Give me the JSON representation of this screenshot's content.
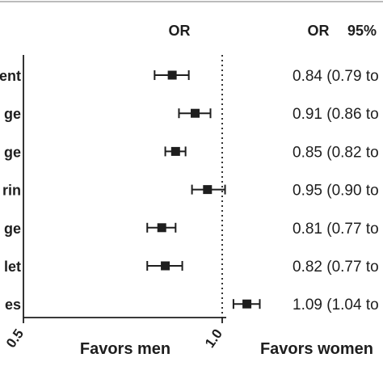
{
  "chart_data": {
    "type": "forest",
    "title": "",
    "header": {
      "or_plot": "OR",
      "or_table": "OR",
      "ci_table": "95%"
    },
    "rows": [
      {
        "label": "ent",
        "or": 0.84,
        "ci_low": 0.79,
        "ci_high": 0.89,
        "text": "0.84 (0.79 to"
      },
      {
        "label": "ge",
        "or": 0.91,
        "ci_low": 0.86,
        "ci_high": 0.96,
        "text": "0.91 (0.86 to"
      },
      {
        "label": "ge",
        "or": 0.85,
        "ci_low": 0.82,
        "ci_high": 0.88,
        "text": "0.85 (0.82 to"
      },
      {
        "label": "rin",
        "or": 0.95,
        "ci_low": 0.9,
        "ci_high": 1.01,
        "text": "0.95 (0.90 to"
      },
      {
        "label": "ge",
        "or": 0.81,
        "ci_low": 0.77,
        "ci_high": 0.85,
        "text": "0.81 (0.77 to"
      },
      {
        "label": "let",
        "or": 0.82,
        "ci_low": 0.77,
        "ci_high": 0.87,
        "text": "0.82 (0.77 to"
      },
      {
        "label": "es",
        "or": 1.09,
        "ci_low": 1.04,
        "ci_high": 1.14,
        "text": "1.09 (1.04 to"
      }
    ],
    "xaxis": {
      "scale": "log",
      "xlim": [
        0.5,
        1.0
      ],
      "ticks": [
        0.5,
        1.0
      ],
      "tick_labels": [
        "0.5",
        "1.0"
      ],
      "reference_line": 1.0,
      "reference_style": "dotted"
    },
    "annotations": {
      "left": "Favors men",
      "right": "Favors women"
    },
    "colors": {
      "ink": "#1e1e1e",
      "background": "#ffffff"
    }
  }
}
